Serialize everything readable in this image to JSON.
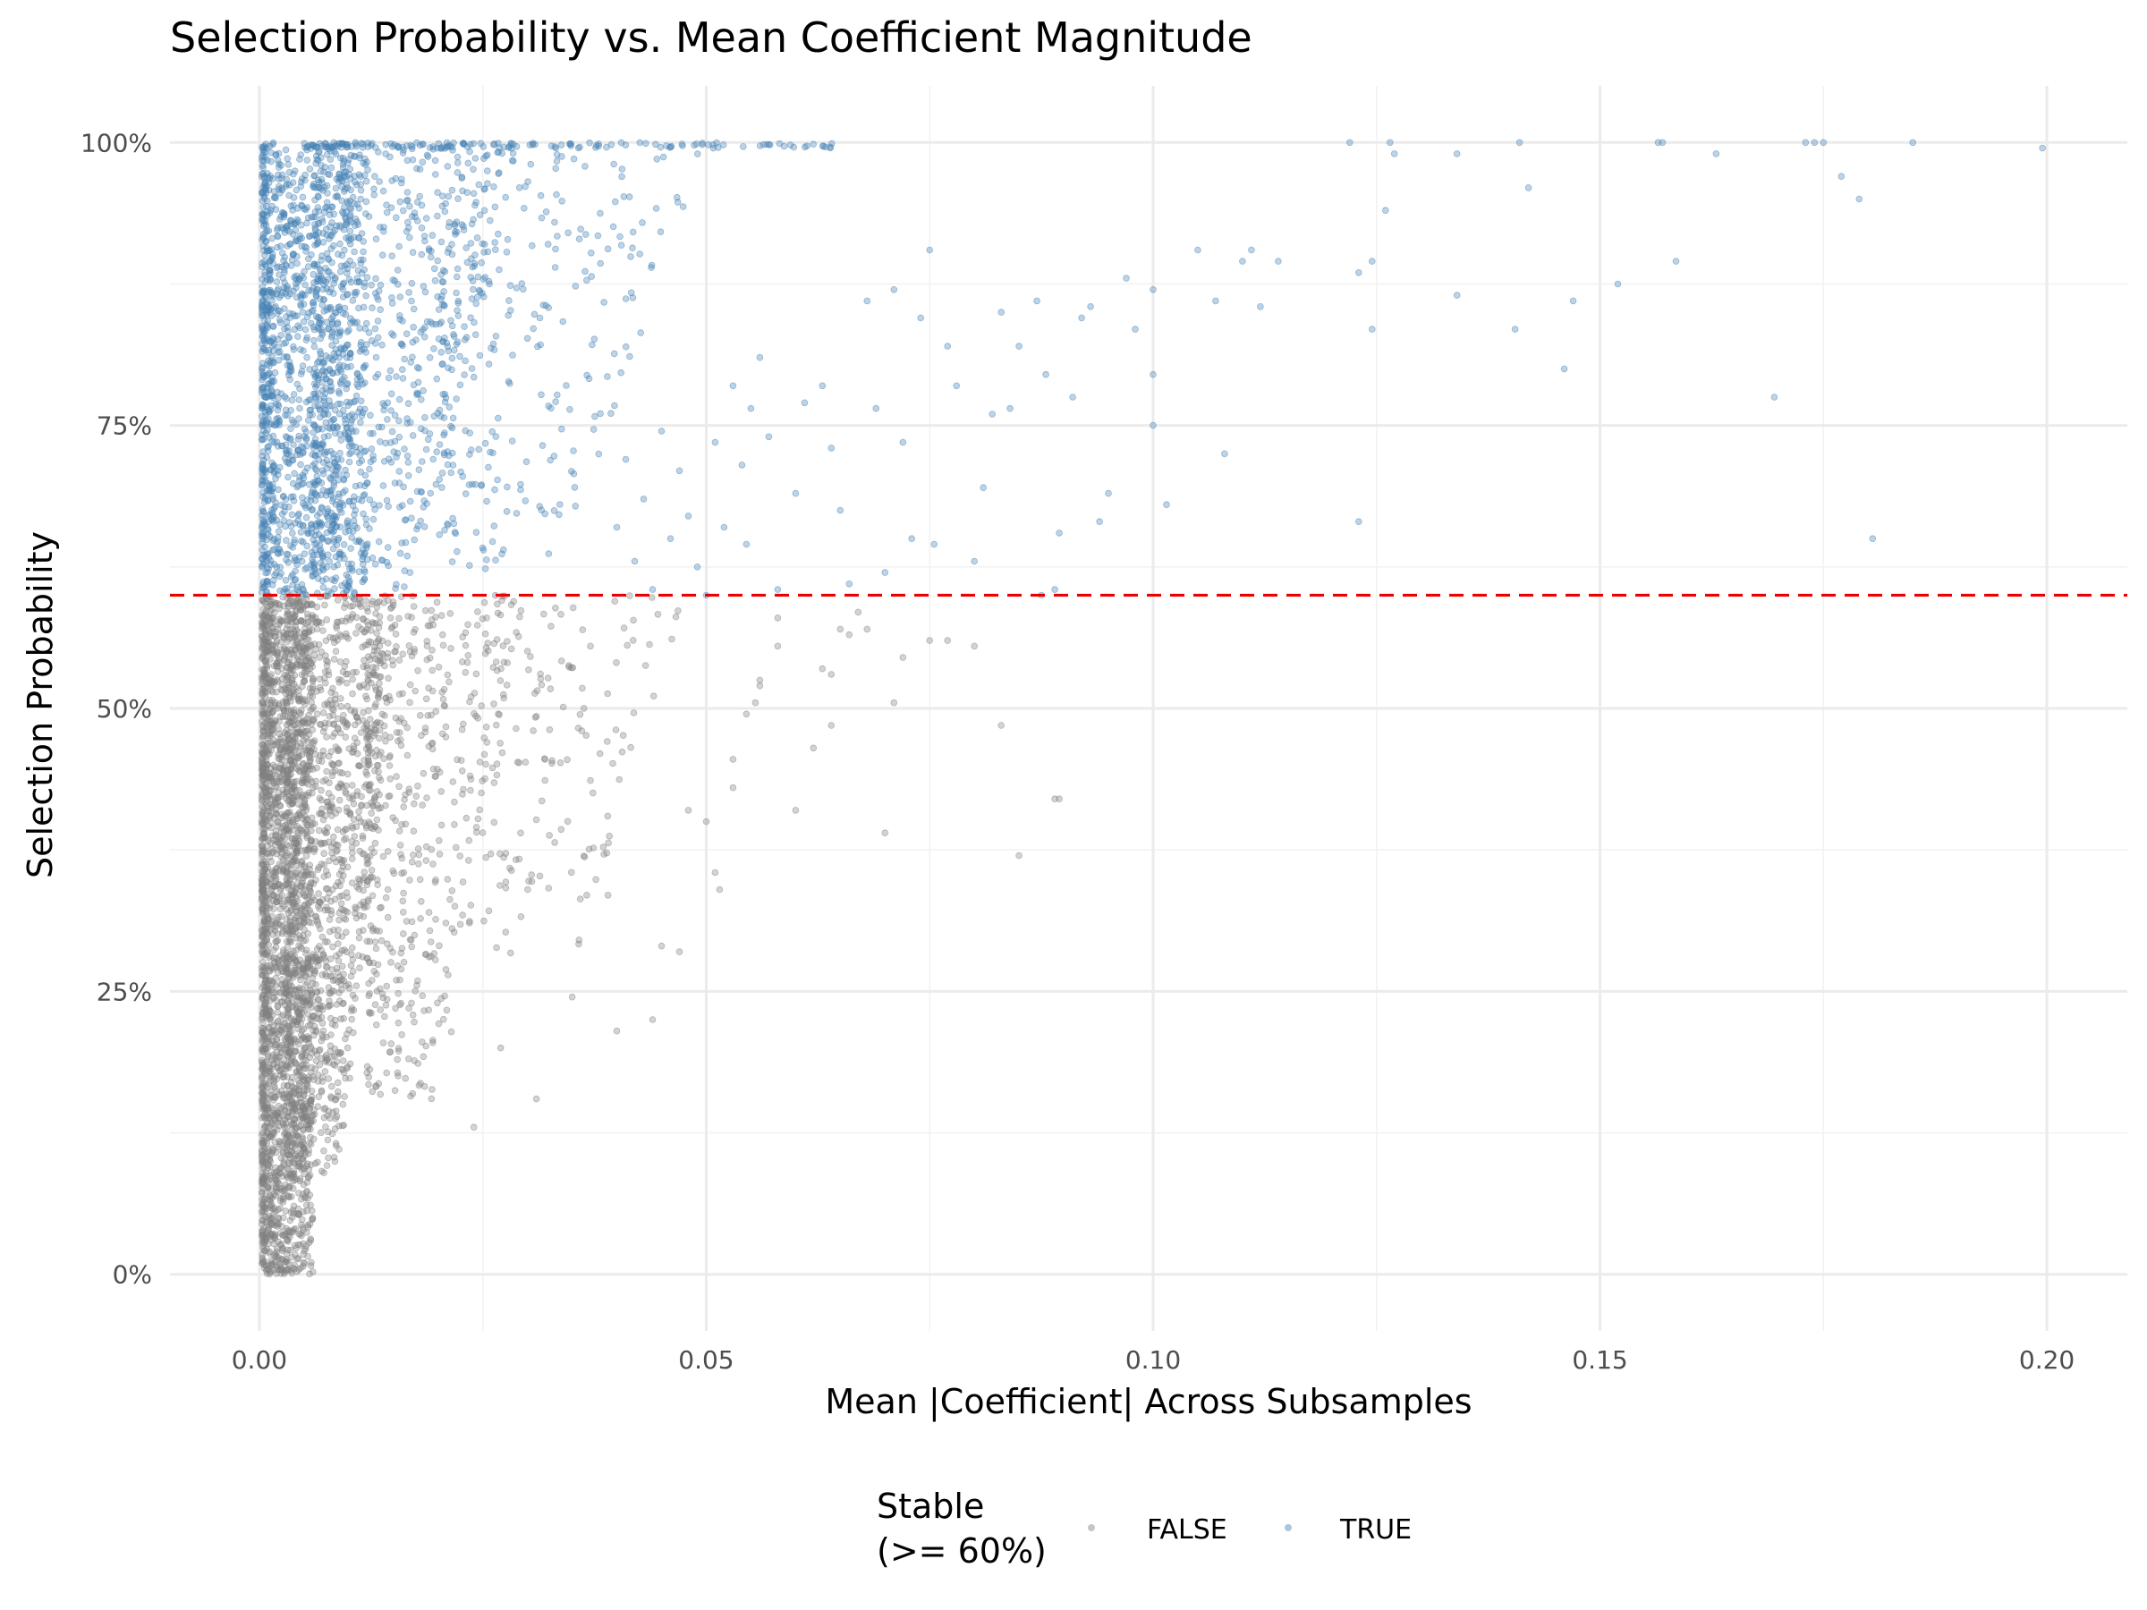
{
  "chart_data": {
    "type": "scatter",
    "title": "Selection Probability vs. Mean Coefficient Magnitude",
    "xlabel": "Mean |Coefficient| Across Subsamples",
    "ylabel": "Selection Probability",
    "xlim": [
      -0.01,
      0.209
    ],
    "ylim": [
      -0.05,
      1.05
    ],
    "x_ticks": [
      0.0,
      0.05,
      0.1,
      0.15,
      0.2
    ],
    "x_tick_labels": [
      "0.00",
      "0.05",
      "0.10",
      "0.15",
      "0.20"
    ],
    "y_ticks": [
      0,
      0.25,
      0.5,
      0.75,
      1.0
    ],
    "y_tick_labels": [
      "0%",
      "25%",
      "50%",
      "75%",
      "100%"
    ],
    "grid": true,
    "threshold": {
      "y": 0.6,
      "color": "#ee0000",
      "style": "dashed"
    },
    "legend": {
      "title_line1": "Stable",
      "title_line2": "(>= 60%)",
      "placement": "bottom",
      "entries": [
        {
          "label": "FALSE",
          "color": "#808080"
        },
        {
          "label": "TRUE",
          "color": "#4682b4"
        }
      ]
    },
    "series": [
      {
        "name": "FALSE",
        "color": "#808080",
        "opacity": 0.35,
        "points": [
          [
            0.089,
            0.42
          ],
          [
            0.0895,
            0.42
          ],
          [
            0.085,
            0.37
          ],
          [
            0.083,
            0.485
          ],
          [
            0.08,
            0.555
          ],
          [
            0.077,
            0.56
          ],
          [
            0.075,
            0.56
          ],
          [
            0.072,
            0.545
          ],
          [
            0.071,
            0.505
          ],
          [
            0.07,
            0.39
          ],
          [
            0.068,
            0.57
          ],
          [
            0.067,
            0.585
          ],
          [
            0.066,
            0.565
          ],
          [
            0.065,
            0.57
          ],
          [
            0.064,
            0.53
          ],
          [
            0.064,
            0.485
          ],
          [
            0.063,
            0.535
          ],
          [
            0.062,
            0.465
          ],
          [
            0.06,
            0.41
          ],
          [
            0.0555,
            0.505
          ],
          [
            0.0545,
            0.495
          ],
          [
            0.056,
            0.525
          ],
          [
            0.056,
            0.52
          ],
          [
            0.058,
            0.555
          ],
          [
            0.058,
            0.58
          ],
          [
            0.053,
            0.455
          ],
          [
            0.053,
            0.43
          ],
          [
            0.0515,
            0.34
          ],
          [
            0.051,
            0.355
          ],
          [
            0.05,
            0.4
          ],
          [
            0.048,
            0.41
          ],
          [
            0.047,
            0.285
          ],
          [
            0.045,
            0.29
          ],
          [
            0.044,
            0.225
          ],
          [
            0.04,
            0.215
          ],
          [
            0.039,
            0.335
          ],
          [
            0.035,
            0.245
          ],
          [
            0.031,
            0.155
          ],
          [
            0.027,
            0.2
          ],
          [
            0.024,
            0.13
          ]
        ],
        "cloud": [
          {
            "count": 2100,
            "x_min": 0.0003,
            "x_max": 0.006,
            "y_min": 0.0,
            "y_max": 0.6,
            "spread": "left"
          },
          {
            "count": 1300,
            "x_min": 0.003,
            "x_max": 0.016,
            "y_min": 0.08,
            "y_max": 0.6,
            "spread": "up"
          },
          {
            "count": 450,
            "x_min": 0.012,
            "x_max": 0.03,
            "y_min": 0.15,
            "y_max": 0.6,
            "spread": "up"
          },
          {
            "count": 140,
            "x_min": 0.025,
            "x_max": 0.048,
            "y_min": 0.28,
            "y_max": 0.6,
            "spread": "up"
          }
        ]
      },
      {
        "name": "TRUE",
        "color": "#4682b4",
        "opacity": 0.35,
        "points": [
          [
            0.1995,
            0.995
          ],
          [
            0.185,
            1.0
          ],
          [
            0.1805,
            0.65
          ],
          [
            0.179,
            0.95
          ],
          [
            0.177,
            0.97
          ],
          [
            0.175,
            1.0
          ],
          [
            0.174,
            1.0
          ],
          [
            0.173,
            1.0
          ],
          [
            0.1695,
            0.775
          ],
          [
            0.163,
            0.99
          ],
          [
            0.1585,
            0.895
          ],
          [
            0.157,
            1.0
          ],
          [
            0.1565,
            1.0
          ],
          [
            0.152,
            0.875
          ],
          [
            0.147,
            0.86
          ],
          [
            0.146,
            0.8
          ],
          [
            0.142,
            0.96
          ],
          [
            0.141,
            1.0
          ],
          [
            0.1405,
            0.835
          ],
          [
            0.134,
            0.99
          ],
          [
            0.134,
            0.865
          ],
          [
            0.127,
            0.99
          ],
          [
            0.1265,
            1.0
          ],
          [
            0.126,
            0.94
          ],
          [
            0.1245,
            0.835
          ],
          [
            0.1245,
            0.895
          ],
          [
            0.123,
            0.885
          ],
          [
            0.123,
            0.665
          ],
          [
            0.122,
            1.0
          ],
          [
            0.114,
            0.895
          ],
          [
            0.112,
            0.855
          ],
          [
            0.111,
            0.905
          ],
          [
            0.11,
            0.895
          ],
          [
            0.108,
            0.725
          ],
          [
            0.107,
            0.86
          ],
          [
            0.105,
            0.905
          ],
          [
            0.1015,
            0.68
          ],
          [
            0.1,
            0.795
          ],
          [
            0.1,
            0.75
          ],
          [
            0.1,
            0.87
          ],
          [
            0.098,
            0.835
          ],
          [
            0.097,
            0.88
          ],
          [
            0.095,
            0.69
          ],
          [
            0.094,
            0.665
          ],
          [
            0.093,
            0.855
          ],
          [
            0.092,
            0.845
          ],
          [
            0.091,
            0.775
          ],
          [
            0.0895,
            0.655
          ],
          [
            0.089,
            0.605
          ],
          [
            0.088,
            0.795
          ],
          [
            0.0875,
            0.6
          ],
          [
            0.087,
            0.86
          ],
          [
            0.085,
            0.82
          ],
          [
            0.084,
            0.765
          ],
          [
            0.083,
            0.85
          ],
          [
            0.082,
            0.76
          ],
          [
            0.081,
            0.695
          ],
          [
            0.08,
            0.63
          ],
          [
            0.078,
            0.785
          ],
          [
            0.077,
            0.82
          ],
          [
            0.0755,
            0.645
          ],
          [
            0.075,
            0.905
          ],
          [
            0.074,
            0.845
          ],
          [
            0.073,
            0.65
          ],
          [
            0.072,
            0.735
          ],
          [
            0.071,
            0.87
          ],
          [
            0.07,
            0.62
          ],
          [
            0.069,
            0.765
          ],
          [
            0.068,
            0.86
          ],
          [
            0.066,
            0.61
          ],
          [
            0.065,
            0.675
          ],
          [
            0.064,
            0.73
          ],
          [
            0.063,
            0.785
          ],
          [
            0.061,
            0.77
          ],
          [
            0.06,
            0.69
          ],
          [
            0.058,
            0.605
          ],
          [
            0.057,
            0.74
          ],
          [
            0.056,
            0.81
          ],
          [
            0.055,
            0.765
          ],
          [
            0.0545,
            0.645
          ],
          [
            0.054,
            0.715
          ],
          [
            0.053,
            0.785
          ],
          [
            0.052,
            0.66
          ],
          [
            0.051,
            0.735
          ],
          [
            0.05,
            0.6
          ],
          [
            0.049,
            0.625
          ],
          [
            0.048,
            0.67
          ],
          [
            0.047,
            0.71
          ],
          [
            0.046,
            0.65
          ],
          [
            0.045,
            0.745
          ],
          [
            0.044,
            0.605
          ],
          [
            0.043,
            0.685
          ],
          [
            0.042,
            0.63
          ],
          [
            0.041,
            0.72
          ],
          [
            0.04,
            0.66
          ]
        ],
        "cloud": [
          {
            "count": 1300,
            "x_min": 0.0003,
            "x_max": 0.012,
            "y_min": 0.6,
            "y_max": 1.0,
            "spread": "left"
          },
          {
            "count": 700,
            "x_min": 0.006,
            "x_max": 0.03,
            "y_min": 0.6,
            "y_max": 1.0,
            "spread": "up"
          },
          {
            "count": 260,
            "x_min": 0.02,
            "x_max": 0.05,
            "y_min": 0.62,
            "y_max": 1.0,
            "spread": "up"
          },
          {
            "count": 130,
            "x_min": 0.005,
            "x_max": 0.065,
            "y_min": 0.995,
            "y_max": 1.0,
            "spread": "flat"
          }
        ]
      }
    ]
  }
}
